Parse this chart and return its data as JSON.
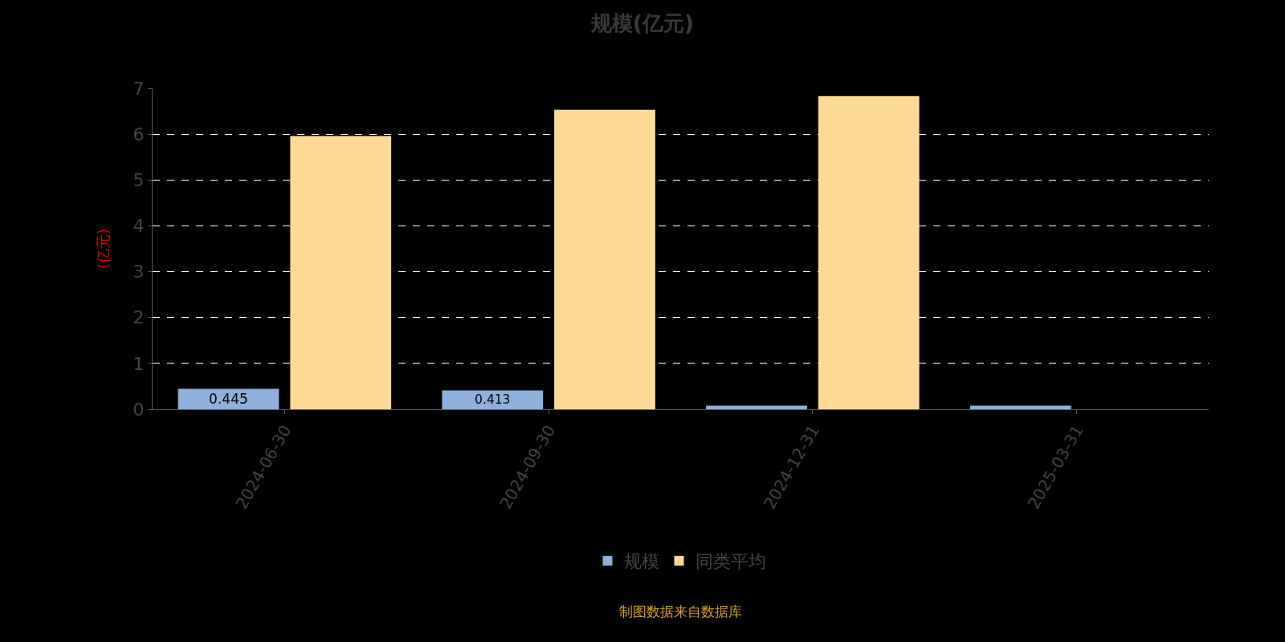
{
  "chart_data": {
    "type": "bar",
    "title": "规模(亿元)",
    "ylabel": "(亿元)",
    "categories": [
      "2024-06-30",
      "2024-09-30",
      "2024-12-31",
      "2025-03-31"
    ],
    "series": [
      {
        "name": "规模",
        "color": "#8eb0dd",
        "values": [
          0.445,
          0.413,
          0.08,
          0.08
        ],
        "value_labels": [
          "0.445",
          "0.413",
          null,
          null
        ]
      },
      {
        "name": "同类平均",
        "color": "#ffd996",
        "values": [
          5.96,
          6.53,
          6.83,
          null
        ]
      }
    ],
    "ylim": [
      0,
      7
    ],
    "yticks": [
      0,
      1,
      2,
      3,
      4,
      5,
      6,
      7
    ],
    "grid": "y",
    "legend": "bottom",
    "annotations": [
      "制图数据来自数据库"
    ]
  }
}
